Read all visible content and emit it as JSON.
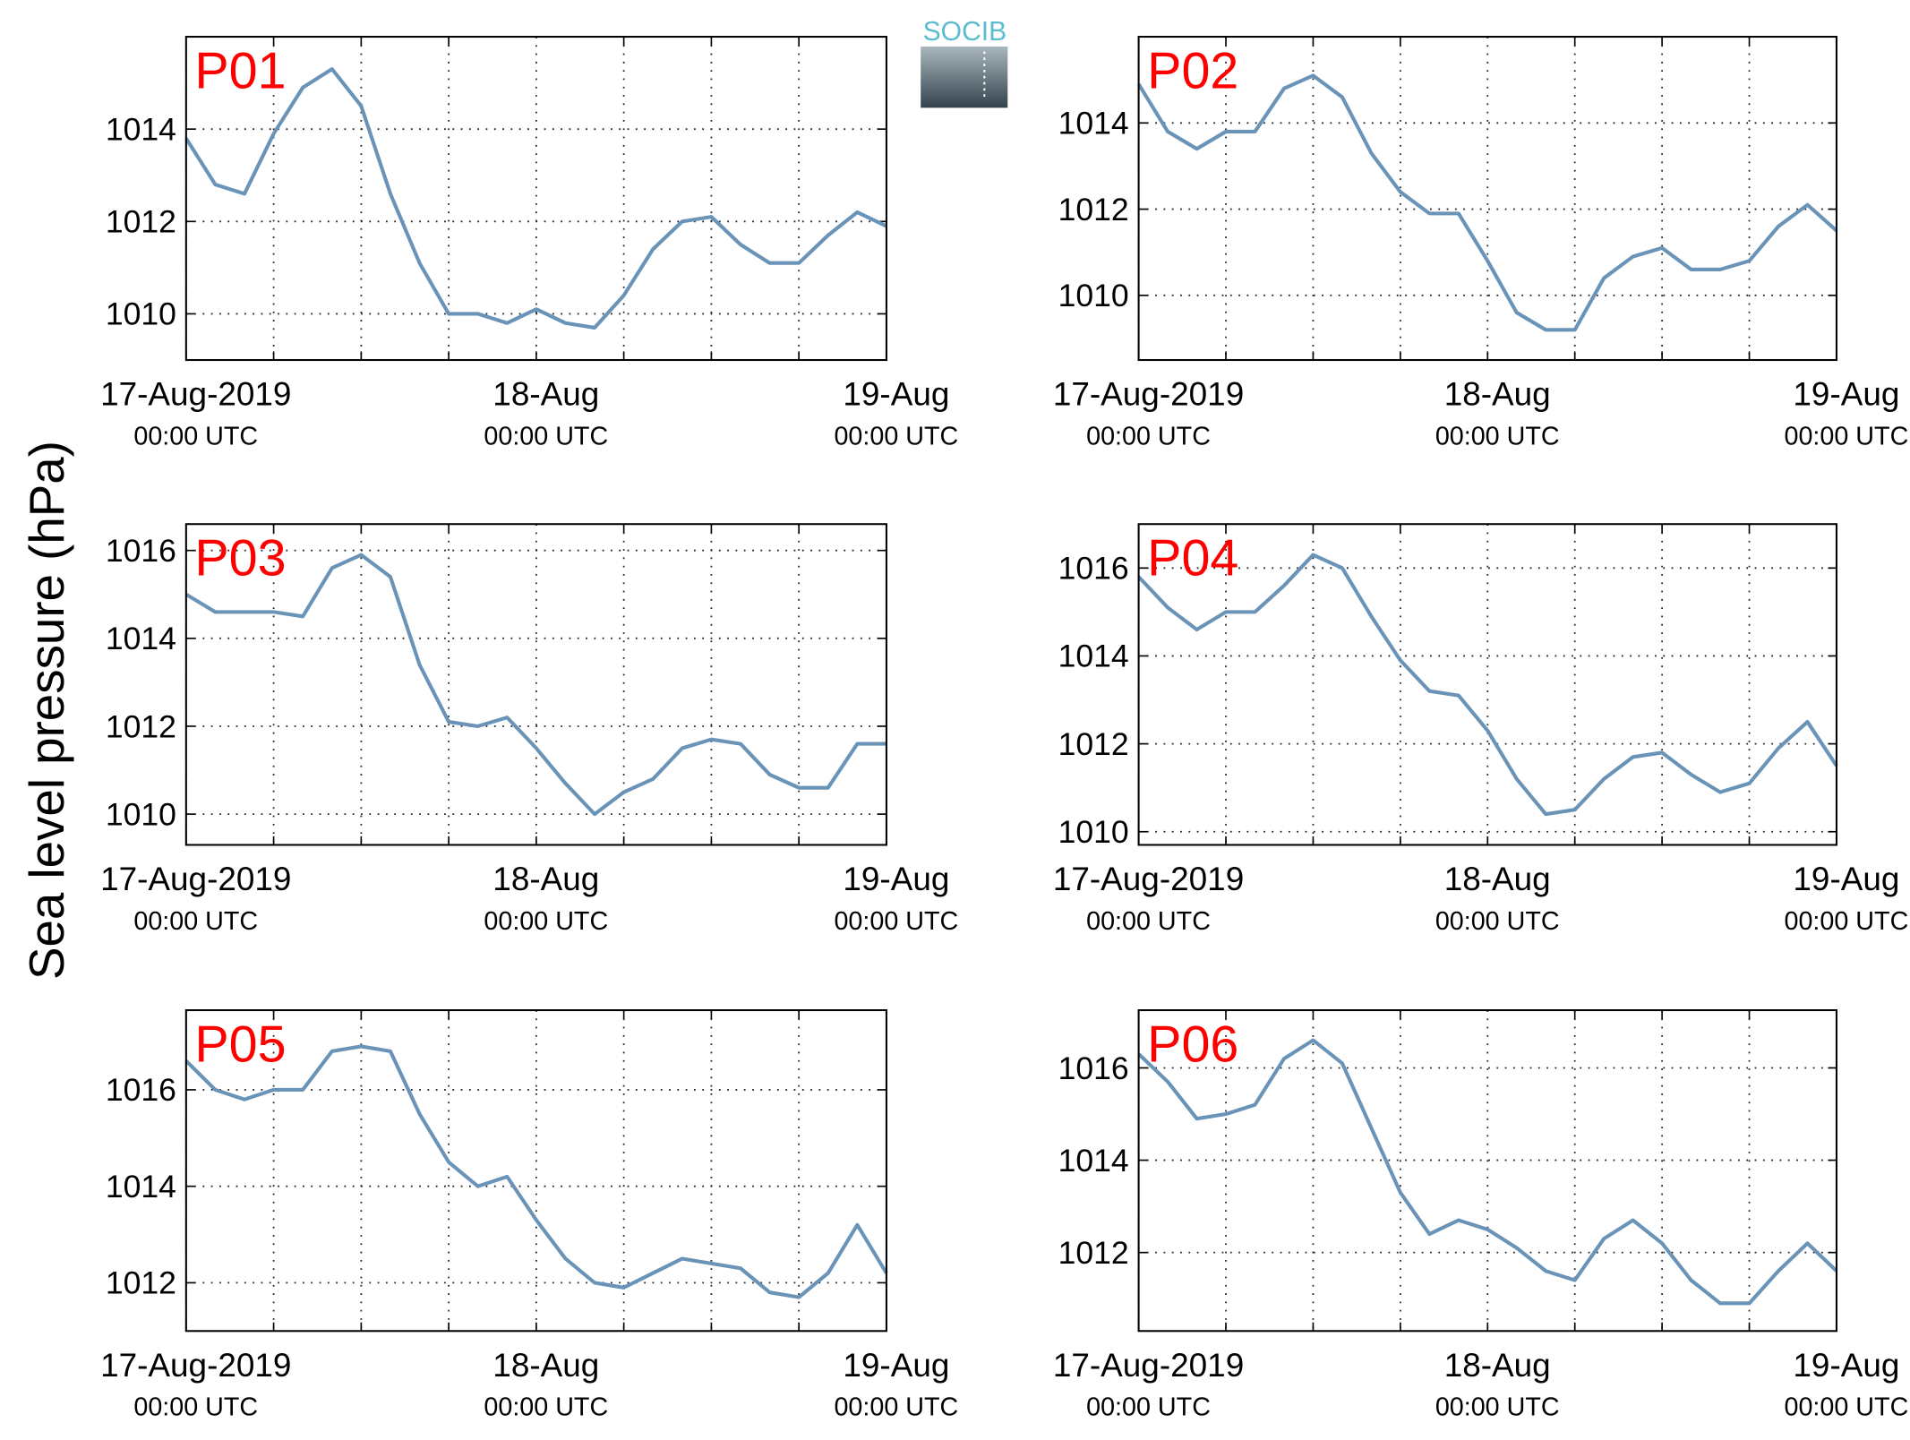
{
  "page": {
    "ylabel": "Sea level pressure (hPa)",
    "logo": "SOCIB"
  },
  "chart_data": [
    {
      "type": "line",
      "title": "P01",
      "color": "#6a93b8",
      "grid": true,
      "x": [
        0,
        2,
        4,
        6,
        8,
        10,
        12,
        14,
        16,
        18,
        20,
        22,
        24,
        26,
        28,
        30,
        32,
        34,
        36,
        38,
        40,
        42,
        44,
        46,
        48
      ],
      "values": [
        1013.8,
        1012.8,
        1012.6,
        1013.9,
        1014.9,
        1015.3,
        1014.5,
        1012.6,
        1011.1,
        1010.0,
        1010.0,
        1009.8,
        1010.1,
        1009.8,
        1009.7,
        1010.4,
        1011.4,
        1012.0,
        1012.1,
        1011.5,
        1011.1,
        1011.1,
        1011.7,
        1012.2,
        1011.9
      ],
      "xlim": [
        0,
        48
      ],
      "xticks": [
        {
          "value": 0,
          "label": "17-Aug-2019",
          "sublabel": "00:00 UTC"
        },
        {
          "value": 24,
          "label": "18-Aug",
          "sublabel": "00:00 UTC"
        },
        {
          "value": 48,
          "label": "19-Aug",
          "sublabel": "00:00 UTC"
        }
      ],
      "xminorticks": [
        6,
        12,
        18,
        30,
        36,
        42
      ],
      "ylim": [
        1009,
        1016
      ],
      "yticks": [
        1010,
        1012,
        1014
      ]
    },
    {
      "type": "line",
      "title": "P02",
      "color": "#6a93b8",
      "grid": true,
      "x": [
        0,
        2,
        4,
        6,
        8,
        10,
        12,
        14,
        16,
        18,
        20,
        22,
        24,
        26,
        28,
        30,
        32,
        34,
        36,
        38,
        40,
        42,
        44,
        46,
        48
      ],
      "values": [
        1014.9,
        1013.8,
        1013.4,
        1013.8,
        1013.8,
        1014.8,
        1015.1,
        1014.6,
        1013.3,
        1012.4,
        1011.9,
        1011.9,
        1010.8,
        1009.6,
        1009.2,
        1009.2,
        1010.4,
        1010.9,
        1011.1,
        1010.6,
        1010.6,
        1010.8,
        1011.6,
        1012.1,
        1011.5
      ],
      "xlim": [
        0,
        48
      ],
      "xticks": [
        {
          "value": 0,
          "label": "17-Aug-2019",
          "sublabel": "00:00 UTC"
        },
        {
          "value": 24,
          "label": "18-Aug",
          "sublabel": "00:00 UTC"
        },
        {
          "value": 48,
          "label": "19-Aug",
          "sublabel": "00:00 UTC"
        }
      ],
      "xminorticks": [
        6,
        12,
        18,
        30,
        36,
        42
      ],
      "ylim": [
        1008.5,
        1016
      ],
      "yticks": [
        1010,
        1012,
        1014
      ]
    },
    {
      "type": "line",
      "title": "P03",
      "color": "#6a93b8",
      "grid": true,
      "x": [
        0,
        2,
        4,
        6,
        8,
        10,
        12,
        14,
        16,
        18,
        20,
        22,
        24,
        26,
        28,
        30,
        32,
        34,
        36,
        38,
        40,
        42,
        44,
        46,
        48
      ],
      "values": [
        1015.0,
        1014.6,
        1014.6,
        1014.6,
        1014.5,
        1015.6,
        1015.9,
        1015.4,
        1013.4,
        1012.1,
        1012.0,
        1012.2,
        1011.5,
        1010.7,
        1010.0,
        1010.5,
        1010.8,
        1011.5,
        1011.7,
        1011.6,
        1010.9,
        1010.6,
        1010.6,
        1011.6,
        1011.6
      ],
      "xlim": [
        0,
        48
      ],
      "xticks": [
        {
          "value": 0,
          "label": "17-Aug-2019",
          "sublabel": "00:00 UTC"
        },
        {
          "value": 24,
          "label": "18-Aug",
          "sublabel": "00:00 UTC"
        },
        {
          "value": 48,
          "label": "19-Aug",
          "sublabel": "00:00 UTC"
        }
      ],
      "xminorticks": [
        6,
        12,
        18,
        30,
        36,
        42
      ],
      "ylim": [
        1009.3,
        1016.6
      ],
      "yticks": [
        1010,
        1012,
        1014,
        1016
      ]
    },
    {
      "type": "line",
      "title": "P04",
      "color": "#6a93b8",
      "grid": true,
      "x": [
        0,
        2,
        4,
        6,
        8,
        10,
        12,
        14,
        16,
        18,
        20,
        22,
        24,
        26,
        28,
        30,
        32,
        34,
        36,
        38,
        40,
        42,
        44,
        46,
        48
      ],
      "values": [
        1015.8,
        1015.1,
        1014.6,
        1015.0,
        1015.0,
        1015.6,
        1016.3,
        1016.0,
        1014.9,
        1013.9,
        1013.2,
        1013.1,
        1012.3,
        1011.2,
        1010.4,
        1010.5,
        1011.2,
        1011.7,
        1011.8,
        1011.3,
        1010.9,
        1011.1,
        1011.9,
        1012.5,
        1011.5
      ],
      "xlim": [
        0,
        48
      ],
      "xticks": [
        {
          "value": 0,
          "label": "17-Aug-2019",
          "sublabel": "00:00 UTC"
        },
        {
          "value": 24,
          "label": "18-Aug",
          "sublabel": "00:00 UTC"
        },
        {
          "value": 48,
          "label": "19-Aug",
          "sublabel": "00:00 UTC"
        }
      ],
      "xminorticks": [
        6,
        12,
        18,
        30,
        36,
        42
      ],
      "ylim": [
        1009.7,
        1017
      ],
      "yticks": [
        1010,
        1012,
        1014,
        1016
      ]
    },
    {
      "type": "line",
      "title": "P05",
      "color": "#6a93b8",
      "grid": true,
      "x": [
        0,
        2,
        4,
        6,
        8,
        10,
        12,
        14,
        16,
        18,
        20,
        22,
        24,
        26,
        28,
        30,
        32,
        34,
        36,
        38,
        40,
        42,
        44,
        46,
        48
      ],
      "values": [
        1016.6,
        1016.0,
        1015.8,
        1016.0,
        1016.0,
        1016.8,
        1016.9,
        1016.8,
        1015.5,
        1014.5,
        1014.0,
        1014.2,
        1013.3,
        1012.5,
        1012.0,
        1011.9,
        1012.2,
        1012.5,
        1012.4,
        1012.3,
        1011.8,
        1011.7,
        1012.2,
        1013.2,
        1012.2
      ],
      "xlim": [
        0,
        48
      ],
      "xticks": [
        {
          "value": 0,
          "label": "17-Aug-2019",
          "sublabel": "00:00 UTC"
        },
        {
          "value": 24,
          "label": "18-Aug",
          "sublabel": "00:00 UTC"
        },
        {
          "value": 48,
          "label": "19-Aug",
          "sublabel": "00:00 UTC"
        }
      ],
      "xminorticks": [
        6,
        12,
        18,
        30,
        36,
        42
      ],
      "ylim": [
        1011,
        1017.65
      ],
      "yticks": [
        1012,
        1014,
        1016
      ]
    },
    {
      "type": "line",
      "title": "P06",
      "color": "#6a93b8",
      "grid": true,
      "x": [
        0,
        2,
        4,
        6,
        8,
        10,
        12,
        14,
        16,
        18,
        20,
        22,
        24,
        26,
        28,
        30,
        32,
        34,
        36,
        38,
        40,
        42,
        44,
        46,
        48
      ],
      "values": [
        1016.3,
        1015.7,
        1014.9,
        1015.0,
        1015.2,
        1016.2,
        1016.6,
        1016.1,
        1014.7,
        1013.3,
        1012.4,
        1012.7,
        1012.5,
        1012.1,
        1011.6,
        1011.4,
        1012.3,
        1012.7,
        1012.2,
        1011.4,
        1010.9,
        1010.9,
        1011.6,
        1012.2,
        1011.6
      ],
      "xlim": [
        0,
        48
      ],
      "xticks": [
        {
          "value": 0,
          "label": "17-Aug-2019",
          "sublabel": "00:00 UTC"
        },
        {
          "value": 24,
          "label": "18-Aug",
          "sublabel": "00:00 UTC"
        },
        {
          "value": 48,
          "label": "19-Aug",
          "sublabel": "00:00 UTC"
        }
      ],
      "xminorticks": [
        6,
        12,
        18,
        30,
        36,
        42
      ],
      "ylim": [
        1010.3,
        1017.25
      ],
      "yticks": [
        1012,
        1014,
        1016
      ]
    }
  ]
}
